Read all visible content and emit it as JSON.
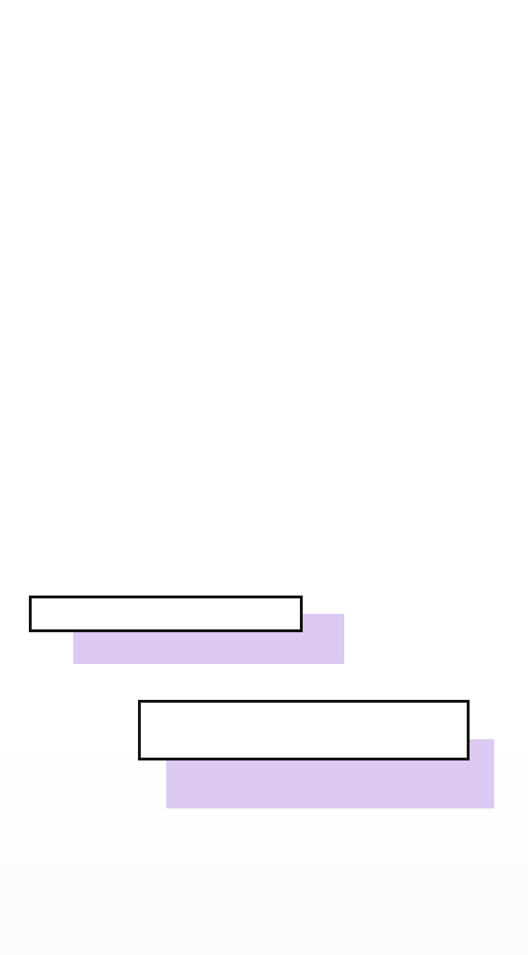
{
  "colors": {
    "background": "#ffffff",
    "caption_border": "#111111",
    "caption_fill": "#ffffff",
    "caption_shadow": "#dccaf2"
  },
  "captions": [
    {
      "text": ""
    },
    {
      "text": ""
    }
  ]
}
